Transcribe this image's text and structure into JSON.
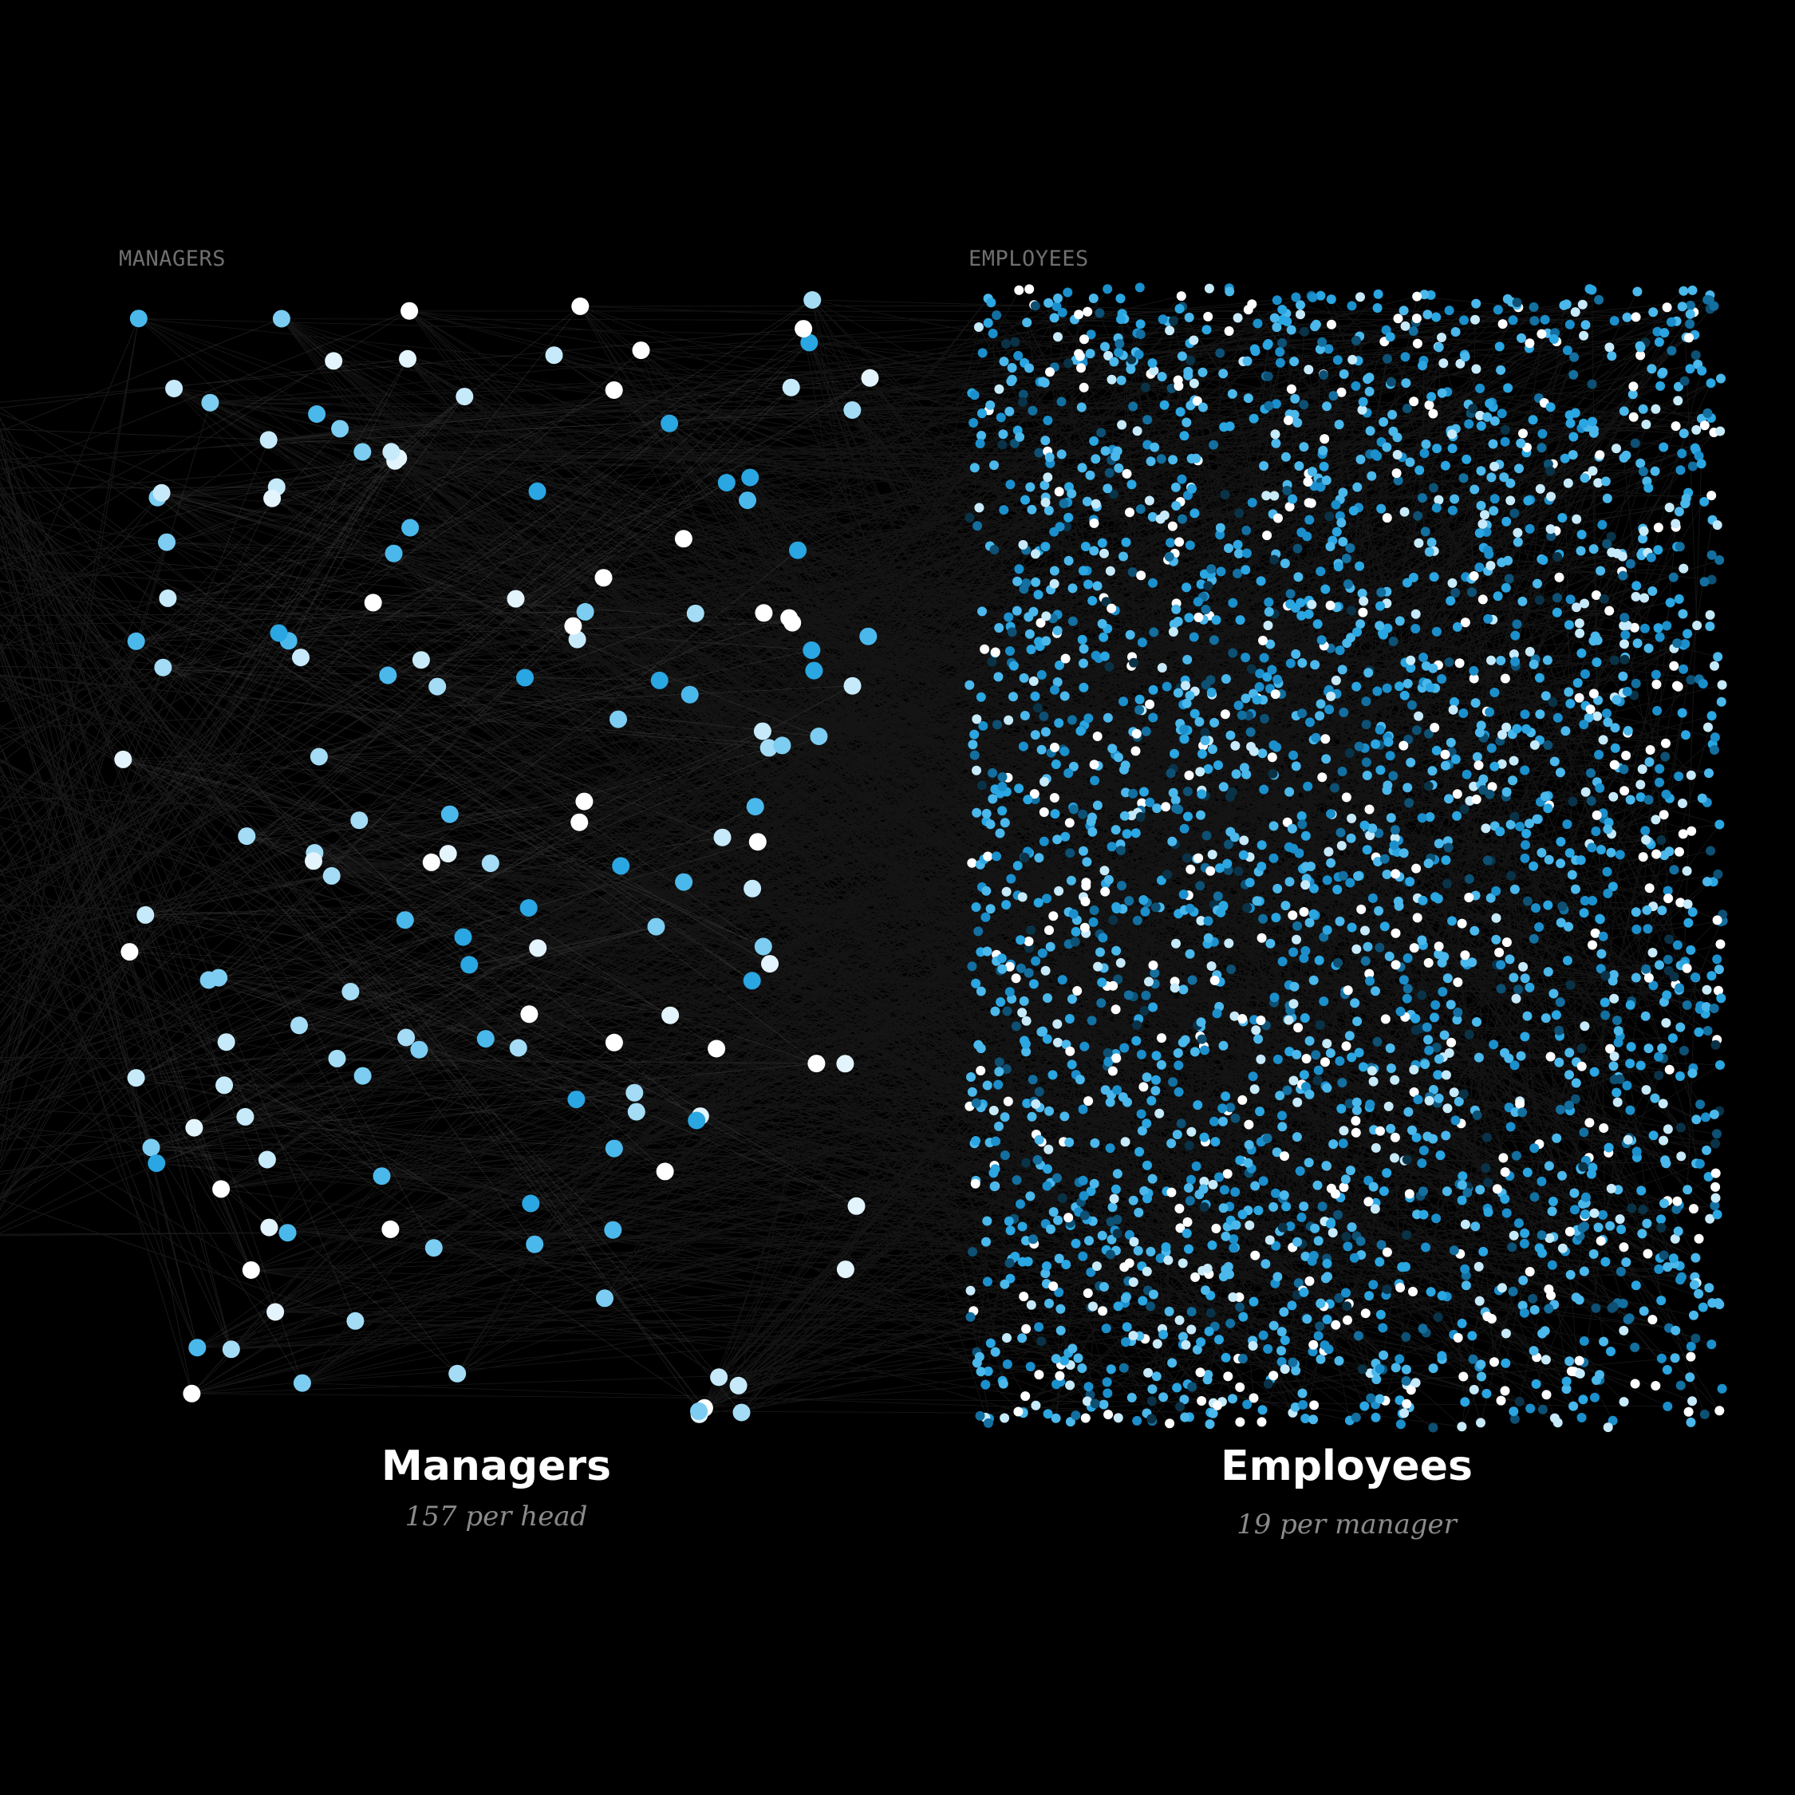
{
  "labels": {
    "managers_tag": "MANAGERS",
    "employees_tag": "EMPLOYEES"
  },
  "captions": {
    "managers": {
      "title": "Managers",
      "subtitle": "157 per head"
    },
    "employees": {
      "title": "Employees",
      "subtitle": "19 per manager"
    }
  },
  "colors": {
    "background": "#000000",
    "edge": "#b4b4b4",
    "node_palette": [
      "#ffffff",
      "#e3f4fd",
      "#c6eafa",
      "#a4dcf5",
      "#7ccdf1",
      "#4bb8ec",
      "#2aa6e2",
      "#1b8fcc",
      "#136f9f",
      "#0d5073",
      "#0a3247",
      "#dcdcdc",
      "#bdbdbd"
    ]
  },
  "diagram": {
    "type": "bipartite network",
    "manager_node_count": 157,
    "employee_node_count": 2983
  }
}
